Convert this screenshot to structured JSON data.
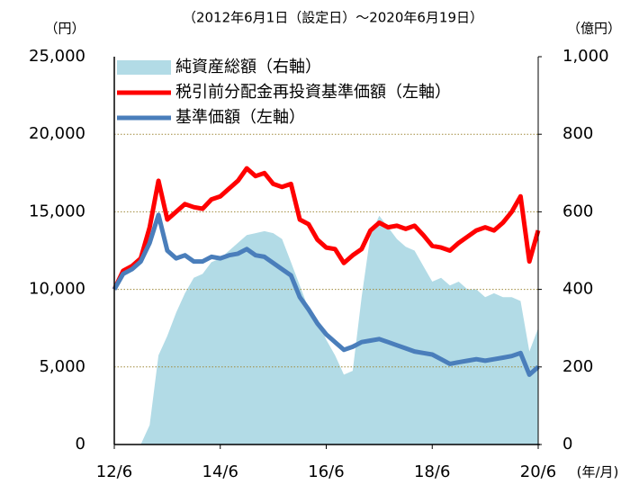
{
  "chart_data": {
    "type": "line",
    "subtitle": "（2012年6月1日（設定日）～2020年6月19日）",
    "y_unit": "（円）",
    "y2_unit": "（億円）",
    "x_unit": "(年/月)",
    "x": [
      "2012-06",
      "2012-08",
      "2012-10",
      "2012-12",
      "2013-02",
      "2013-04",
      "2013-06",
      "2013-08",
      "2013-10",
      "2013-12",
      "2014-02",
      "2014-04",
      "2014-06",
      "2014-08",
      "2014-10",
      "2014-12",
      "2015-02",
      "2015-04",
      "2015-06",
      "2015-08",
      "2015-10",
      "2015-12",
      "2016-02",
      "2016-04",
      "2016-06",
      "2016-08",
      "2016-10",
      "2016-12",
      "2017-02",
      "2017-04",
      "2017-06",
      "2017-08",
      "2017-10",
      "2017-12",
      "2018-02",
      "2018-04",
      "2018-06",
      "2018-08",
      "2018-10",
      "2018-12",
      "2019-02",
      "2019-04",
      "2019-06",
      "2019-08",
      "2019-10",
      "2019-12",
      "2020-02",
      "2020-04",
      "2020-06"
    ],
    "xlim": [
      "2012-06",
      "2020-06"
    ],
    "xticks": [
      {
        "value": "2012-06",
        "label": "12/6"
      },
      {
        "value": "2014-06",
        "label": "14/6"
      },
      {
        "value": "2016-06",
        "label": "16/6"
      },
      {
        "value": "2018-06",
        "label": "18/6"
      },
      {
        "value": "2020-06",
        "label": "20/6"
      }
    ],
    "ylim": [
      0,
      25000
    ],
    "yticks": [
      0,
      {
        "value": 5000,
        "label": "5,000"
      },
      {
        "value": 10000,
        "label": "10,000"
      },
      {
        "value": 15000,
        "label": "15,000"
      },
      {
        "value": 20000,
        "label": "20,000"
      },
      {
        "value": 25000,
        "label": "25,000"
      }
    ],
    "y2lim": [
      0,
      1000
    ],
    "y2ticks": [
      0,
      200,
      400,
      600,
      800,
      {
        "value": 1000,
        "label": "1,000"
      }
    ],
    "grid": true,
    "legend": "upper left",
    "series": [
      {
        "name": "純資産総額（右軸）",
        "type": "area",
        "axis": "y2",
        "color": "#b2dbe6",
        "values": [
          0,
          0,
          0,
          0,
          50,
          230,
          280,
          340,
          390,
          430,
          440,
          470,
          480,
          500,
          520,
          540,
          545,
          550,
          545,
          530,
          470,
          410,
          350,
          320,
          270,
          230,
          180,
          190,
          380,
          540,
          590,
          560,
          530,
          510,
          500,
          460,
          420,
          430,
          410,
          420,
          400,
          400,
          380,
          390,
          380,
          380,
          370,
          240,
          300
        ]
      },
      {
        "name": "税引前分配金再投資基準価額（左軸）",
        "type": "line",
        "color": "#ff0000",
        "values": [
          10000,
          11200,
          11500,
          12000,
          14000,
          17000,
          14500,
          15000,
          15500,
          15300,
          15200,
          15800,
          16000,
          16500,
          17000,
          17800,
          17300,
          17500,
          16800,
          16600,
          16800,
          14500,
          14200,
          13200,
          12700,
          12600,
          11700,
          12200,
          12600,
          13800,
          14300,
          14000,
          14100,
          13900,
          14100,
          13500,
          12800,
          12700,
          12500,
          13000,
          13400,
          13800,
          14000,
          13800,
          14300,
          15000,
          16000,
          11800,
          13800
        ]
      },
      {
        "name": "基準価額（左軸）",
        "type": "line",
        "color": "#4a7ebb",
        "values": [
          10000,
          11000,
          11300,
          11800,
          13000,
          14800,
          12500,
          12000,
          12200,
          11800,
          11800,
          12100,
          12000,
          12200,
          12300,
          12600,
          12200,
          12100,
          11700,
          11300,
          10900,
          9500,
          8700,
          7800,
          7100,
          6600,
          6100,
          6300,
          6600,
          6700,
          6800,
          6600,
          6400,
          6200,
          6000,
          5900,
          5800,
          5500,
          5200,
          5300,
          5400,
          5500,
          5400,
          5500,
          5600,
          5700,
          5900,
          4500,
          5000
        ]
      }
    ]
  }
}
